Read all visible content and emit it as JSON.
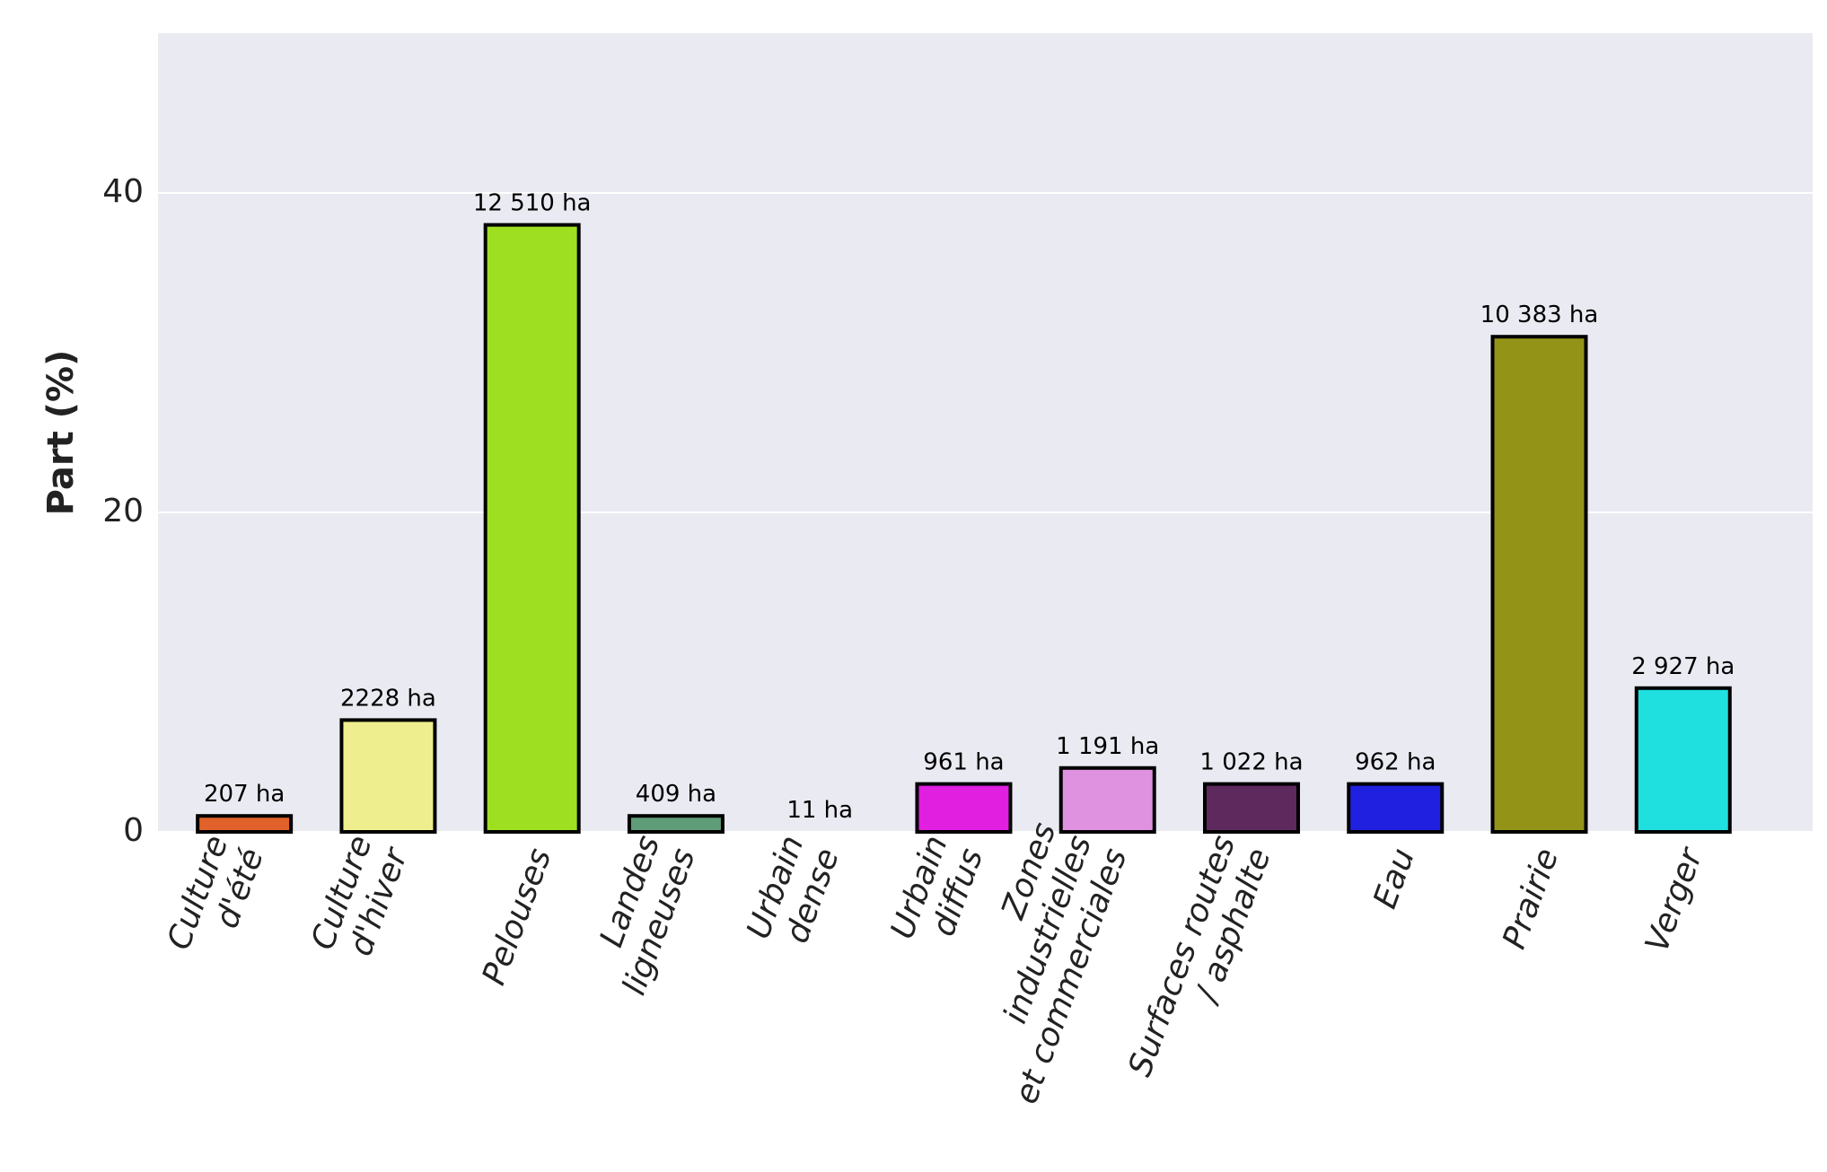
{
  "chart_data": {
    "type": "bar",
    "y_label": "Part (%)",
    "categories": [
      [
        "Culture",
        "d'été"
      ],
      [
        "Culture",
        "d'hiver"
      ],
      [
        "Pelouses"
      ],
      [
        "Landes",
        "ligneuses"
      ],
      [
        "Urbain",
        "dense"
      ],
      [
        "Urbain",
        "diffus"
      ],
      [
        "Zones",
        "industrielles",
        "et commerciales"
      ],
      [
        "Surfaces routes",
        "/ asphalte"
      ],
      [
        "Eau"
      ],
      [
        "Prairie"
      ],
      [
        "Verger"
      ]
    ],
    "values": [
      1,
      7,
      38,
      1,
      0,
      3,
      4,
      3,
      3,
      31,
      9
    ],
    "annotations": [
      "207 ha",
      "2228 ha",
      "12 510 ha",
      "409 ha",
      "11 ha",
      "961 ha",
      "1 191 ha",
      "1 022 ha",
      "962 ha",
      "10 383 ha",
      "2 927 ha"
    ],
    "colors": [
      "#e0622a",
      "#eeee8f",
      "#9ee021",
      "#5f9c78",
      "#333333",
      "#e01fe0",
      "#df92df",
      "#5e2a5e",
      "#2020e0",
      "#939318",
      "#20dfdf"
    ],
    "ylim": [
      0,
      50
    ],
    "yticks": [
      0,
      20,
      40
    ],
    "grid": true
  }
}
